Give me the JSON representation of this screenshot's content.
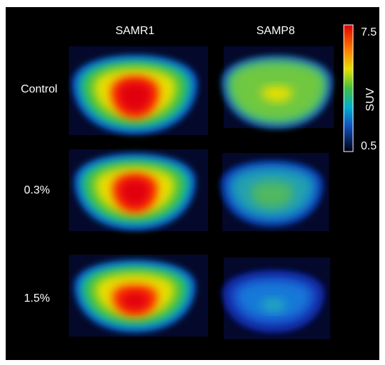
{
  "columns": [
    "SAMR1",
    "SAMP8"
  ],
  "rows": [
    "Control",
    "0.3%",
    "1.5%"
  ],
  "colorbar": {
    "label": "SUV",
    "max": 7.5,
    "min": 0.5
  }
}
